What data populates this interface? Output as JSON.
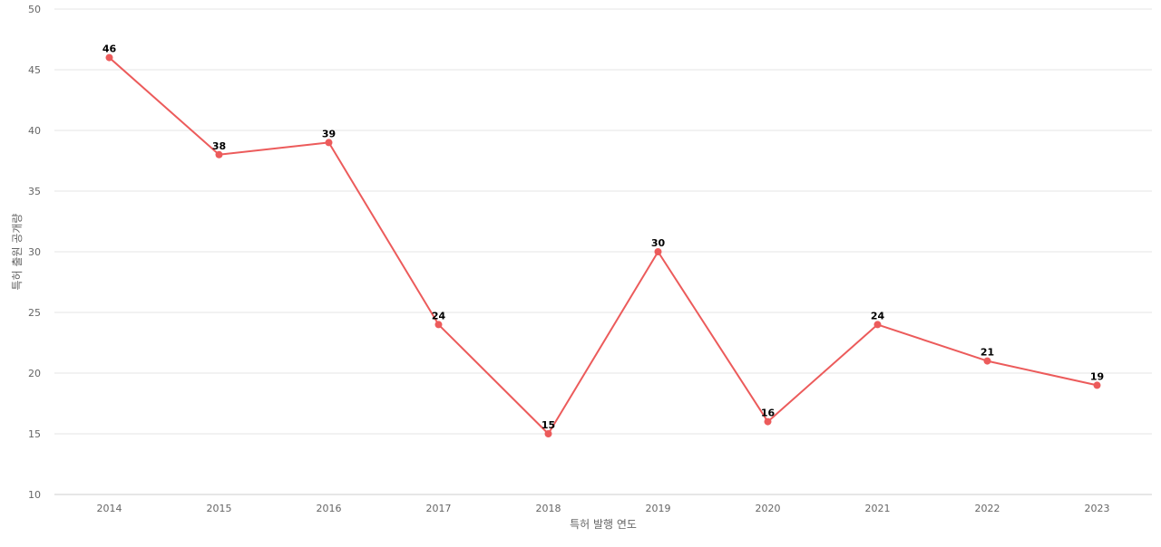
{
  "chart_data": {
    "type": "line",
    "title": "",
    "xlabel": "특허 발행 연도",
    "ylabel": "특허 출원 공개량",
    "categories": [
      "2014",
      "2015",
      "2016",
      "2017",
      "2018",
      "2019",
      "2020",
      "2021",
      "2022",
      "2023"
    ],
    "series": [
      {
        "values": [
          46,
          38,
          39,
          24,
          15,
          30,
          16,
          24,
          21,
          19
        ],
        "color": "#ec5b5b"
      }
    ],
    "ylim": [
      10,
      50
    ],
    "yticks": [
      "10",
      "15",
      "20",
      "25",
      "30",
      "35",
      "40",
      "45",
      "50"
    ],
    "grid": true,
    "data_labels": true
  }
}
